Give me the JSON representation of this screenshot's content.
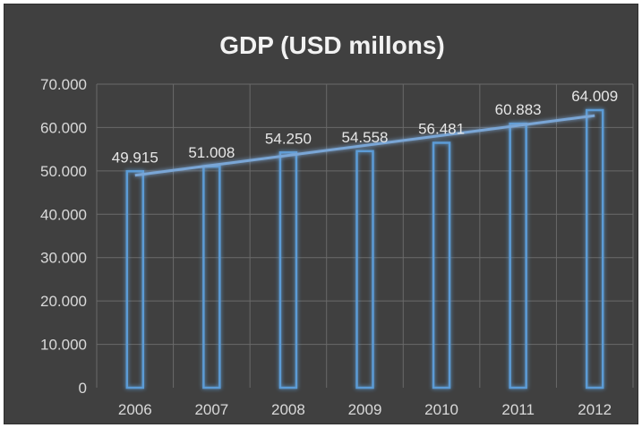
{
  "chart_data": {
    "type": "bar",
    "title": "GDP (USD millons)",
    "categories": [
      "2006",
      "2007",
      "2008",
      "2009",
      "2010",
      "2011",
      "2012"
    ],
    "values": [
      49915,
      51008,
      54250,
      54558,
      56481,
      60883,
      64009
    ],
    "data_labels": [
      "49.915",
      "51.008",
      "54.250",
      "54.558",
      "56.481",
      "60.883",
      "64.009"
    ],
    "yticks": [
      {
        "value": 0,
        "label": "0"
      },
      {
        "value": 10000,
        "label": "10.000"
      },
      {
        "value": 20000,
        "label": "20.000"
      },
      {
        "value": 30000,
        "label": "30.000"
      },
      {
        "value": 40000,
        "label": "40.000"
      },
      {
        "value": 50000,
        "label": "50.000"
      },
      {
        "value": 60000,
        "label": "60.000"
      },
      {
        "value": 70000,
        "label": "70.000"
      }
    ],
    "ylim": [
      0,
      70000
    ],
    "grid": true,
    "legend": "none",
    "trendline": "linear",
    "colors": {
      "background": "#404040",
      "bar": "#5b9bd5",
      "trendline": "#7aa6d6",
      "grid": "#6a6a6a",
      "text": "#d9d9d9"
    }
  }
}
